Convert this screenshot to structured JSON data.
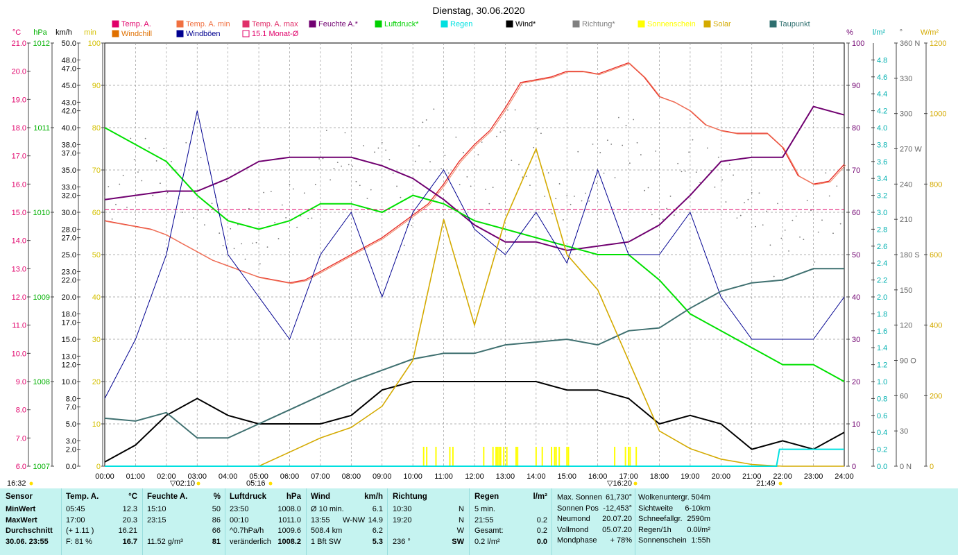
{
  "title": "Dienstag, 30.06.2020",
  "legend": [
    {
      "label": "Temp. A.",
      "color": "#e0006a"
    },
    {
      "label": "Temp. A. min",
      "color": "#f07040"
    },
    {
      "label": "Temp. A. max",
      "color": "#e0306a"
    },
    {
      "label": "Feuchte A.*",
      "color": "#700070"
    },
    {
      "label": "Luftdruck*",
      "color": "#00d000"
    },
    {
      "label": "Regen",
      "color": "#00e0e0"
    },
    {
      "label": "Wind*",
      "color": "#000000"
    },
    {
      "label": "Richtung*",
      "color": "#808080"
    },
    {
      "label": "Sonnenschein",
      "color": "#ffff00"
    },
    {
      "label": "Solar",
      "color": "#d4aa00"
    },
    {
      "label": "Taupunkt",
      "color": "#2f6f6f"
    },
    {
      "label": "Windchill",
      "color": "#e07000"
    },
    {
      "label": "Windböen",
      "color": "#000090"
    },
    {
      "label": "15.1 Monat-Ø",
      "color": "#e0006a"
    }
  ],
  "chart_data": {
    "type": "line",
    "title": "Dienstag, 30.06.2020",
    "x_ticks": [
      "00:00",
      "01:00",
      "02:00",
      "03:00",
      "04:00",
      "05:00",
      "06:00",
      "07:00",
      "08:00",
      "09:00",
      "10:00",
      "11:00",
      "12:00",
      "13:00",
      "14:00",
      "15:00",
      "16:00",
      "17:00",
      "18:00",
      "19:00",
      "20:00",
      "21:00",
      "22:00",
      "23:00",
      "24:00"
    ],
    "axes_left": {
      "temp_c": {
        "unit": "°C",
        "ticks": [
          "21.0",
          "20.0",
          "19.0",
          "18.0",
          "17.0",
          "16.0",
          "15.0",
          "14.0",
          "13.0",
          "12.0",
          "11.0",
          "10.0",
          "9.0",
          "8.0",
          "7.0",
          "6.0"
        ],
        "range": [
          6,
          21
        ]
      },
      "pressure_hpa": {
        "unit": "hPa",
        "ticks": [
          "1012",
          "1011",
          "1010",
          "1009",
          "1008",
          "1007"
        ],
        "range": [
          1007,
          1012
        ]
      },
      "wind_kmh": {
        "unit": "km/h",
        "ticks": [
          "50.0",
          "48.0",
          "47.0",
          "45.0",
          "43.0",
          "42.0",
          "40.0",
          "38.0",
          "37.0",
          "35.0",
          "33.0",
          "32.0",
          "30.0",
          "28.0",
          "27.0",
          "25.0",
          "23.0",
          "22.0",
          "20.0",
          "18.0",
          "17.0",
          "15.0",
          "13.0",
          "12.0",
          "10.0",
          "8.0",
          "7.0",
          "5.0",
          "3.0",
          "2.0",
          "0.0"
        ],
        "range": [
          0,
          50
        ]
      },
      "sun_min": {
        "unit": "min",
        "ticks": [
          "100",
          "90",
          "80",
          "70",
          "60",
          "50",
          "40",
          "30",
          "20",
          "10",
          "0"
        ],
        "range": [
          0,
          100
        ]
      }
    },
    "axes_right": {
      "humidity_pct": {
        "unit": "%",
        "ticks": [
          "100",
          "90",
          "80",
          "70",
          "60",
          "50",
          "40",
          "30",
          "20",
          "10",
          "0"
        ],
        "range": [
          0,
          100
        ]
      },
      "rain_lm2": {
        "unit": "l/m²",
        "ticks": [
          "4.8",
          "4.6",
          "4.4",
          "4.2",
          "4.0",
          "3.8",
          "3.6",
          "3.4",
          "3.2",
          "3.0",
          "2.8",
          "2.6",
          "2.4",
          "2.2",
          "2.0",
          "1.8",
          "1.6",
          "1.4",
          "1.2",
          "1.0",
          "0.8",
          "0.6",
          "0.4",
          "0.2",
          "0.0"
        ],
        "range": [
          0,
          5
        ]
      },
      "direction_deg": {
        "unit": "°",
        "ticks": [
          "360 N",
          "330",
          "300",
          "270 W",
          "240",
          "210",
          "180 S",
          "150",
          "120",
          "90  O",
          "60",
          "30",
          "0  N"
        ],
        "range": [
          0,
          360
        ]
      },
      "solar_wm2": {
        "unit": "W/m²",
        "ticks": [
          "1200",
          "1000",
          "800",
          "600",
          "400",
          "200",
          "0"
        ],
        "range": [
          0,
          1200
        ]
      }
    },
    "series": [
      {
        "name": "Temp. A.",
        "axis": "temp_c",
        "x": [
          0,
          0.5,
          1,
          1.5,
          2,
          2.5,
          3,
          3.5,
          4,
          4.5,
          5,
          5.5,
          6,
          6.5,
          7,
          7.5,
          8,
          8.5,
          9,
          9.5,
          10,
          10.5,
          11,
          11.5,
          12,
          12.5,
          13,
          13.5,
          14,
          14.5,
          15,
          15.5,
          16,
          16.5,
          17,
          17.5,
          18,
          18.5,
          19,
          19.5,
          20,
          20.5,
          21,
          21.5,
          22,
          22.5,
          23,
          23.5,
          24
        ],
        "values": [
          14.7,
          14.6,
          14.5,
          14.4,
          14.2,
          13.9,
          13.6,
          13.3,
          13.1,
          12.9,
          12.7,
          12.6,
          12.5,
          12.6,
          12.9,
          13.2,
          13.5,
          13.8,
          14.1,
          14.5,
          14.9,
          15.3,
          16.0,
          16.8,
          17.4,
          17.9,
          18.7,
          19.6,
          19.7,
          19.8,
          20.0,
          20.0,
          19.9,
          20.1,
          20.3,
          19.8,
          19.1,
          18.9,
          18.6,
          18.1,
          17.9,
          17.8,
          17.8,
          17.8,
          17.3,
          16.3,
          16.0,
          16.1,
          16.7
        ]
      },
      {
        "name": "Feuchte A.*",
        "axis": "humidity_pct",
        "x": [
          0,
          1,
          2,
          3,
          4,
          5,
          6,
          7,
          8,
          9,
          10,
          11,
          12,
          13,
          14,
          15,
          16,
          17,
          18,
          19,
          20,
          21,
          22,
          23,
          24
        ],
        "values": [
          63,
          64,
          65,
          65,
          68,
          72,
          73,
          73,
          73,
          71,
          68,
          63,
          57,
          53,
          53,
          51,
          52,
          53,
          57,
          64,
          72,
          73,
          73,
          85,
          83
        ]
      },
      {
        "name": "Luftdruck*",
        "axis": "pressure_hpa",
        "x": [
          0,
          1,
          2,
          3,
          4,
          5,
          6,
          7,
          8,
          9,
          10,
          11,
          12,
          13,
          14,
          15,
          16,
          17,
          18,
          19,
          20,
          21,
          22,
          23,
          24
        ],
        "values": [
          1011.0,
          1010.8,
          1010.6,
          1010.2,
          1009.9,
          1009.8,
          1009.9,
          1010.1,
          1010.1,
          1010.0,
          1010.2,
          1010.1,
          1009.9,
          1009.8,
          1009.7,
          1009.6,
          1009.5,
          1009.5,
          1009.2,
          1008.8,
          1008.6,
          1008.4,
          1008.2,
          1008.2,
          1008.0
        ]
      },
      {
        "name": "Wind*",
        "axis": "wind_kmh",
        "x": [
          0,
          1,
          2,
          3,
          4,
          5,
          6,
          7,
          8,
          9,
          10,
          11,
          12,
          13,
          14,
          15,
          16,
          17,
          18,
          19,
          20,
          21,
          22,
          23,
          24
        ],
        "values": [
          0.5,
          2.5,
          6,
          8,
          6,
          5,
          5,
          5,
          6,
          9,
          10,
          10,
          10,
          10,
          10,
          9,
          9,
          8,
          5,
          6,
          5,
          2,
          3,
          2,
          4
        ]
      },
      {
        "name": "Windböen",
        "axis": "wind_kmh",
        "x": [
          0,
          1,
          2,
          3,
          4,
          5,
          6,
          7,
          8,
          9,
          10,
          11,
          12,
          13,
          14,
          15,
          16,
          17,
          18,
          19,
          20,
          21,
          22,
          23,
          24
        ],
        "values": [
          8,
          15,
          25,
          42,
          25,
          20,
          15,
          25,
          30,
          20,
          30,
          35,
          28,
          25,
          30,
          24,
          35,
          25,
          25,
          30,
          20,
          15,
          15,
          15,
          20
        ]
      },
      {
        "name": "Taupunkt",
        "axis": "temp_c",
        "x": [
          0,
          1,
          2,
          3,
          4,
          5,
          6,
          7,
          8,
          9,
          10,
          11,
          12,
          13,
          14,
          15,
          16,
          17,
          18,
          19,
          20,
          21,
          22,
          23,
          24
        ],
        "values": [
          7.7,
          7.6,
          7.9,
          7.0,
          7.0,
          7.5,
          8.0,
          8.5,
          9.0,
          9.4,
          9.8,
          10.0,
          10.0,
          10.3,
          10.4,
          10.5,
          10.3,
          10.8,
          10.9,
          11.6,
          12.2,
          12.5,
          12.6,
          13.0,
          13.0
        ]
      },
      {
        "name": "Solar",
        "axis": "solar_wm2",
        "x": [
          0,
          5,
          6,
          7,
          8,
          9,
          10,
          11,
          12,
          13,
          14,
          15,
          16,
          17,
          18,
          19,
          20,
          21,
          22,
          24
        ],
        "values": [
          0,
          0,
          40,
          80,
          110,
          170,
          300,
          700,
          400,
          700,
          900,
          600,
          500,
          300,
          100,
          50,
          20,
          5,
          0,
          0
        ]
      },
      {
        "name": "Regen",
        "axis": "rain_lm2",
        "x": [
          0,
          21.8,
          21.9,
          24
        ],
        "values": [
          0,
          0,
          0.2,
          0.2
        ]
      },
      {
        "name": "15.1 Monat-Ø",
        "axis": "temp_c",
        "x": [
          0,
          24
        ],
        "values": [
          15.1,
          15.1
        ]
      }
    ],
    "markers": [
      {
        "label": "16:32",
        "pos": "left"
      },
      {
        "label": "▽02:10",
        "x": "02:10"
      },
      {
        "label": "05:16",
        "x": "05:16"
      },
      {
        "label": "▽16:20",
        "x": "16:20"
      },
      {
        "label": "21:49",
        "x": "21:49"
      }
    ]
  },
  "summary": {
    "sensor": {
      "header": "Sensor",
      "rows": [
        "MinWert",
        "MaxWert",
        "Durchschnitt",
        "30.06.  23:55"
      ]
    },
    "temp": {
      "header": "Temp. A.",
      "unit": "°C",
      "rows": [
        [
          "05:45",
          "12.3"
        ],
        [
          "17:00",
          "20.3"
        ],
        [
          "(+ 1.11 )",
          "16.21"
        ],
        [
          "F: 81 %",
          "16.7"
        ]
      ]
    },
    "humidity": {
      "header": "Feuchte A.",
      "unit": "%",
      "rows": [
        [
          "15:10",
          "50"
        ],
        [
          "23:15",
          "86"
        ],
        [
          "",
          "66"
        ],
        [
          "11.52 g/m³",
          "81"
        ]
      ]
    },
    "pressure": {
      "header": "Luftdruck",
      "unit": "hPa",
      "rows": [
        [
          "23:50",
          "1008.0"
        ],
        [
          "00:10",
          "1011.0"
        ],
        [
          "^0.7hPa/h",
          "1009.6"
        ],
        [
          "veränderlich",
          "1008.2"
        ]
      ]
    },
    "wind": {
      "header": "Wind",
      "unit": "km/h",
      "rows": [
        [
          "Ø 10 min.",
          "",
          "6.1"
        ],
        [
          "13:55",
          "W-NW",
          "14.9"
        ],
        [
          "508.4 km",
          "",
          "6.2"
        ],
        [
          "1 Bft SW",
          "",
          "5.3"
        ]
      ]
    },
    "direction": {
      "header": "Richtung",
      "rows": [
        [
          "10:30",
          "N"
        ],
        [
          "19:20",
          "N"
        ],
        [
          "",
          "W"
        ],
        [
          "236 °",
          "SW"
        ]
      ]
    },
    "rain": {
      "header": "Regen",
      "unit": "l/m²",
      "rows": [
        [
          "5 min.",
          ""
        ],
        [
          "21:55",
          "0.2"
        ],
        [
          "Gesamt:",
          "0.2"
        ],
        [
          "0.2 l/m²",
          "0.0"
        ]
      ]
    },
    "astro": {
      "rows": [
        [
          "Max. Sonnen",
          "61,730°"
        ],
        [
          "Sonnen Pos",
          "-12,453°"
        ],
        [
          "Neumond",
          "20.07.20"
        ],
        [
          "Vollmond",
          "05.07.20"
        ],
        [
          "Mondphase",
          "+ 78%"
        ]
      ]
    },
    "extra": {
      "rows": [
        [
          "Wolkenuntergr.",
          "504m"
        ],
        [
          "Sichtweite",
          "6-10km"
        ],
        [
          "Schneefallgr.",
          "2590m"
        ],
        [
          "Regen/1h",
          "0.0l/m²"
        ],
        [
          "Sonnenschein",
          "1:55h"
        ]
      ]
    }
  }
}
